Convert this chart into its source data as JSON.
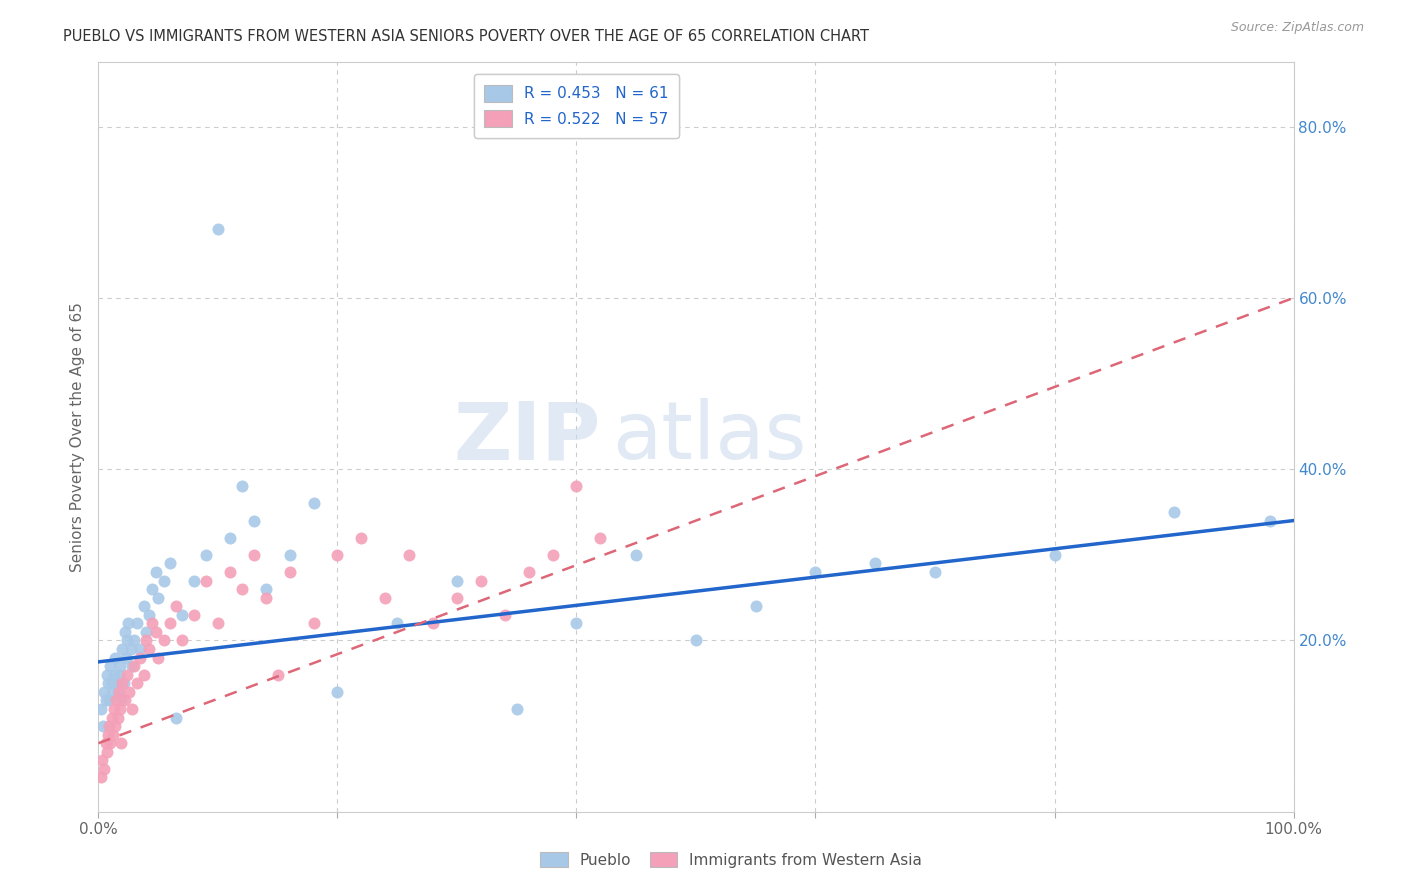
{
  "title": "PUEBLO VS IMMIGRANTS FROM WESTERN ASIA SENIORS POVERTY OVER THE AGE OF 65 CORRELATION CHART",
  "source": "Source: ZipAtlas.com",
  "ylabel": "Seniors Poverty Over the Age of 65",
  "xlim": [
    0,
    1.0
  ],
  "ylim": [
    0,
    0.875
  ],
  "color_blue": "#a8c8e8",
  "color_pink": "#f4a0b8",
  "line_blue": "#2266cc",
  "line_pink": "#dd6677",
  "watermark_zip": "ZIP",
  "watermark_atlas": "atlas",
  "pueblo_x": [
    0.002,
    0.004,
    0.005,
    0.006,
    0.007,
    0.008,
    0.009,
    0.01,
    0.011,
    0.012,
    0.013,
    0.014,
    0.015,
    0.016,
    0.017,
    0.018,
    0.019,
    0.02,
    0.021,
    0.022,
    0.023,
    0.024,
    0.025,
    0.027,
    0.028,
    0.03,
    0.032,
    0.035,
    0.038,
    0.04,
    0.042,
    0.045,
    0.048,
    0.05,
    0.055,
    0.06,
    0.065,
    0.07,
    0.08,
    0.09,
    0.1,
    0.11,
    0.12,
    0.13,
    0.14,
    0.16,
    0.18,
    0.2,
    0.25,
    0.3,
    0.35,
    0.4,
    0.45,
    0.5,
    0.55,
    0.6,
    0.65,
    0.7,
    0.8,
    0.9,
    0.98
  ],
  "pueblo_y": [
    0.12,
    0.1,
    0.14,
    0.13,
    0.16,
    0.15,
    0.13,
    0.17,
    0.15,
    0.14,
    0.16,
    0.18,
    0.15,
    0.14,
    0.16,
    0.17,
    0.13,
    0.19,
    0.15,
    0.21,
    0.18,
    0.2,
    0.22,
    0.19,
    0.17,
    0.2,
    0.22,
    0.19,
    0.24,
    0.21,
    0.23,
    0.26,
    0.28,
    0.25,
    0.27,
    0.29,
    0.11,
    0.23,
    0.27,
    0.3,
    0.68,
    0.32,
    0.38,
    0.34,
    0.26,
    0.3,
    0.36,
    0.14,
    0.22,
    0.27,
    0.12,
    0.22,
    0.3,
    0.2,
    0.24,
    0.28,
    0.29,
    0.28,
    0.3,
    0.35,
    0.34
  ],
  "immigrants_x": [
    0.002,
    0.003,
    0.005,
    0.006,
    0.007,
    0.008,
    0.009,
    0.01,
    0.011,
    0.012,
    0.013,
    0.014,
    0.015,
    0.016,
    0.017,
    0.018,
    0.019,
    0.02,
    0.022,
    0.024,
    0.026,
    0.028,
    0.03,
    0.032,
    0.035,
    0.038,
    0.04,
    0.042,
    0.045,
    0.048,
    0.05,
    0.055,
    0.06,
    0.065,
    0.07,
    0.08,
    0.09,
    0.1,
    0.11,
    0.12,
    0.13,
    0.14,
    0.15,
    0.16,
    0.18,
    0.2,
    0.22,
    0.24,
    0.26,
    0.28,
    0.3,
    0.32,
    0.34,
    0.36,
    0.38,
    0.4,
    0.42
  ],
  "immigrants_y": [
    0.04,
    0.06,
    0.05,
    0.08,
    0.07,
    0.09,
    0.1,
    0.08,
    0.11,
    0.09,
    0.12,
    0.1,
    0.13,
    0.11,
    0.14,
    0.12,
    0.08,
    0.15,
    0.13,
    0.16,
    0.14,
    0.12,
    0.17,
    0.15,
    0.18,
    0.16,
    0.2,
    0.19,
    0.22,
    0.21,
    0.18,
    0.2,
    0.22,
    0.24,
    0.2,
    0.23,
    0.27,
    0.22,
    0.28,
    0.26,
    0.3,
    0.25,
    0.16,
    0.28,
    0.22,
    0.3,
    0.32,
    0.25,
    0.3,
    0.22,
    0.25,
    0.27,
    0.23,
    0.28,
    0.3,
    0.38,
    0.32
  ]
}
